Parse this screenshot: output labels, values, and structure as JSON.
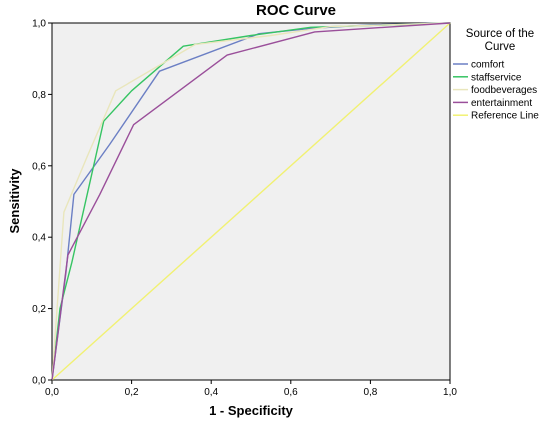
{
  "chart_data": {
    "type": "line",
    "title": "ROC Curve",
    "xlabel": "1 - Specificity",
    "ylabel": "Sensitivity",
    "xlim": [
      0,
      1
    ],
    "ylim": [
      0,
      1
    ],
    "x_ticks": [
      "0,0",
      "0,2",
      "0,4",
      "0,6",
      "0,8",
      "1,0"
    ],
    "y_ticks": [
      "0,0",
      "0,2",
      "0,4",
      "0,6",
      "0,8",
      "1,0"
    ],
    "grid": false,
    "plot_background": "#f0f0f0",
    "legend": {
      "title_lines": [
        "Source of the",
        "Curve"
      ],
      "placement": "right"
    },
    "series": [
      {
        "name": "comfort",
        "color": "#6b7fc4",
        "points": [
          [
            0,
            0
          ],
          [
            0.035,
            0.3
          ],
          [
            0.055,
            0.52
          ],
          [
            0.145,
            0.66
          ],
          [
            0.27,
            0.865
          ],
          [
            0.52,
            0.97
          ],
          [
            0.65,
            0.985
          ],
          [
            0.8,
            0.995
          ],
          [
            1,
            1
          ]
        ]
      },
      {
        "name": "staffservice",
        "color": "#36c463",
        "points": [
          [
            0,
            0
          ],
          [
            0.02,
            0.2
          ],
          [
            0.05,
            0.33
          ],
          [
            0.13,
            0.725
          ],
          [
            0.2,
            0.81
          ],
          [
            0.33,
            0.935
          ],
          [
            0.5,
            0.965
          ],
          [
            0.65,
            0.988
          ],
          [
            1,
            1
          ]
        ]
      },
      {
        "name": "foodbeverages",
        "color": "#e9e6bc",
        "points": [
          [
            0,
            0
          ],
          [
            0.03,
            0.47
          ],
          [
            0.09,
            0.63
          ],
          [
            0.16,
            0.81
          ],
          [
            0.36,
            0.94
          ],
          [
            0.55,
            0.965
          ],
          [
            0.7,
            0.99
          ],
          [
            1,
            1
          ]
        ]
      },
      {
        "name": "entertainment",
        "color": "#9a4f9a",
        "points": [
          [
            0,
            0
          ],
          [
            0.04,
            0.35
          ],
          [
            0.12,
            0.52
          ],
          [
            0.205,
            0.715
          ],
          [
            0.44,
            0.91
          ],
          [
            0.66,
            0.975
          ],
          [
            1,
            1
          ]
        ]
      },
      {
        "name": "Reference Line",
        "color": "#f1f172",
        "points": [
          [
            0,
            0
          ],
          [
            1,
            1
          ]
        ]
      }
    ]
  }
}
